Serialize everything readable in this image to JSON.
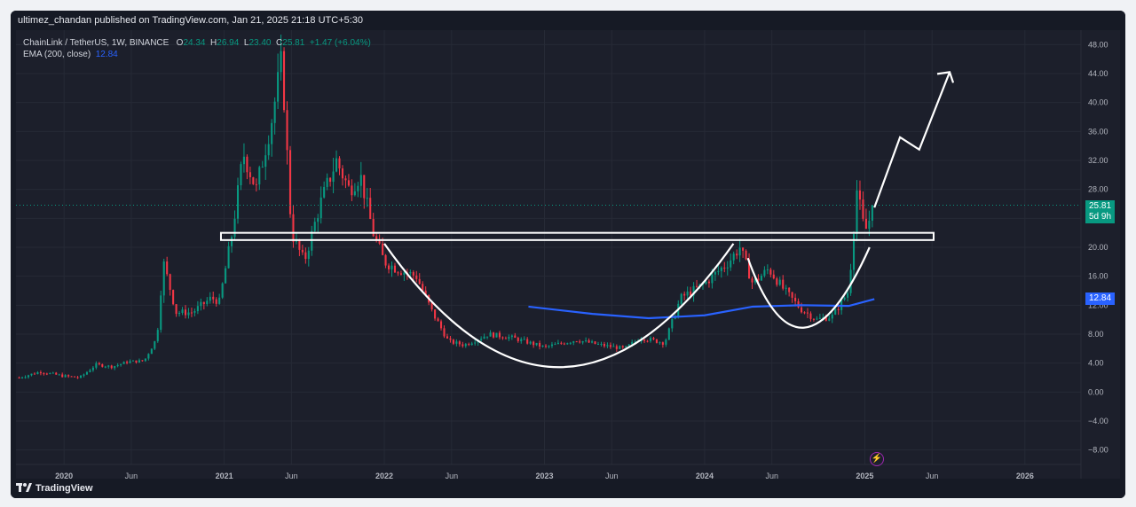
{
  "header": {
    "publisher_text": "ultimez_chandan published on TradingView.com, Jan 21, 2025 21:18 UTC+5:30"
  },
  "legend": {
    "symbol": "ChainLink / TetherUS, 1W, BINANCE",
    "o_label": "O",
    "o_value": "24.34",
    "h_label": "H",
    "h_value": "26.94",
    "l_label": "L",
    "l_value": "23.40",
    "c_label": "C",
    "c_value": "25.81",
    "change": "+1.47 (+6.04%)",
    "ema_label": "EMA (200, close)",
    "ema_value": "12.84"
  },
  "price_tags": {
    "last_price": "25.81",
    "countdown": "5d 9h",
    "ema": "12.84"
  },
  "footer": {
    "brand": "TradingView"
  },
  "colors": {
    "up": "#089981",
    "down": "#f23645",
    "ema": "#2962ff",
    "background": "#1c1f2b",
    "annotation": "#ffffff"
  },
  "chart_data": {
    "type": "candlestick",
    "symbol": "LINK/USDT",
    "interval": "1W",
    "y_axis_ticks": [
      "48.00",
      "44.00",
      "40.00",
      "36.00",
      "32.00",
      "28.00",
      "24.00",
      "20.00",
      "16.00",
      "12.00",
      "8.00",
      "4.00",
      "0.00",
      "−4.00",
      "−8.00"
    ],
    "ylim": [
      -10,
      50
    ],
    "x_axis_ticks": [
      "2020",
      "Jun",
      "2021",
      "Jun",
      "2022",
      "Jun",
      "2023",
      "Jun",
      "2024",
      "Jun",
      "2025",
      "Jun",
      "2026"
    ],
    "x_tick_values": [
      2020.0,
      2020.42,
      2021.0,
      2021.42,
      2022.0,
      2022.42,
      2023.0,
      2023.42,
      2024.0,
      2024.42,
      2025.0,
      2025.42,
      2026.0
    ],
    "xlim": [
      2019.7,
      2026.35
    ],
    "price_anchors": [
      [
        2019.72,
        2.0
      ],
      [
        2019.85,
        2.8
      ],
      [
        2020.0,
        2.2
      ],
      [
        2020.1,
        2.0
      ],
      [
        2020.2,
        3.8
      ],
      [
        2020.3,
        3.5
      ],
      [
        2020.4,
        4.2
      ],
      [
        2020.5,
        4.3
      ],
      [
        2020.58,
        7.5
      ],
      [
        2020.62,
        18.0
      ],
      [
        2020.7,
        11.0
      ],
      [
        2020.8,
        11.0
      ],
      [
        2020.92,
        13.0
      ],
      [
        2020.97,
        12.5
      ],
      [
        2021.05,
        22.0
      ],
      [
        2021.12,
        33.0
      ],
      [
        2021.2,
        28.0
      ],
      [
        2021.3,
        38.0
      ],
      [
        2021.36,
        46.0
      ],
      [
        2021.42,
        22.0
      ],
      [
        2021.5,
        18.0
      ],
      [
        2021.6,
        26.0
      ],
      [
        2021.7,
        32.0
      ],
      [
        2021.78,
        28.0
      ],
      [
        2021.85,
        30.0
      ],
      [
        2021.93,
        22.0
      ],
      [
        2022.0,
        18.0
      ],
      [
        2022.08,
        17.0
      ],
      [
        2022.2,
        16.0
      ],
      [
        2022.3,
        11.0
      ],
      [
        2022.4,
        7.0
      ],
      [
        2022.5,
        6.5
      ],
      [
        2022.65,
        8.0
      ],
      [
        2022.8,
        7.5
      ],
      [
        2023.0,
        6.2
      ],
      [
        2023.2,
        7.2
      ],
      [
        2023.35,
        6.5
      ],
      [
        2023.5,
        6.0
      ],
      [
        2023.6,
        7.5
      ],
      [
        2023.75,
        6.8
      ],
      [
        2023.85,
        13.0
      ],
      [
        2024.0,
        15.0
      ],
      [
        2024.15,
        18.0
      ],
      [
        2024.22,
        20.0
      ],
      [
        2024.3,
        15.0
      ],
      [
        2024.4,
        17.0
      ],
      [
        2024.5,
        14.0
      ],
      [
        2024.6,
        11.5
      ],
      [
        2024.7,
        10.0
      ],
      [
        2024.8,
        10.5
      ],
      [
        2024.9,
        14.0
      ],
      [
        2024.95,
        28.0
      ],
      [
        2025.0,
        22.0
      ],
      [
        2025.06,
        25.81
      ]
    ],
    "ema_200": [
      [
        2022.9,
        11.8
      ],
      [
        2023.3,
        10.8
      ],
      [
        2023.65,
        10.2
      ],
      [
        2024.0,
        10.6
      ],
      [
        2024.3,
        11.8
      ],
      [
        2024.6,
        12.0
      ],
      [
        2024.9,
        11.9
      ],
      [
        2025.06,
        12.84
      ]
    ],
    "annotations": {
      "resistance_band": [
        21.0,
        22.0
      ],
      "resistance_x_range": [
        2020.98,
        2025.43
      ],
      "cup_bottom_price": 3.0,
      "handle_bottom_price": 9.0
    }
  }
}
